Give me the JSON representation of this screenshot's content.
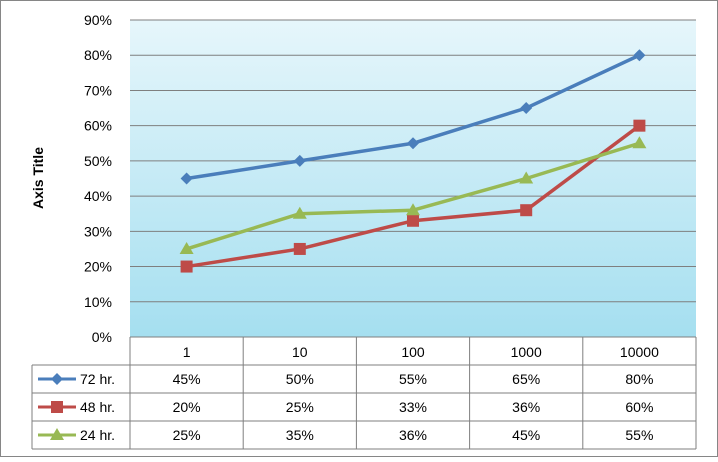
{
  "chart_data": {
    "type": "line",
    "title": "",
    "ylabel": "Axis Title",
    "xlabel": "",
    "categories": [
      "1",
      "10",
      "100",
      "1000",
      "10000"
    ],
    "ylim": [
      0,
      90
    ],
    "yticks": [
      "0%",
      "10%",
      "20%",
      "30%",
      "40%",
      "50%",
      "60%",
      "70%",
      "80%",
      "90%"
    ],
    "grid": true,
    "legend": "data-table",
    "series": [
      {
        "name": "72 hr.",
        "values": [
          45,
          50,
          55,
          65,
          80
        ],
        "labels": [
          "45%",
          "50%",
          "55%",
          "65%",
          "80%"
        ],
        "color": "#4a7ebb",
        "marker": "diamond"
      },
      {
        "name": "48 hr.",
        "values": [
          20,
          25,
          33,
          36,
          60
        ],
        "labels": [
          "20%",
          "25%",
          "33%",
          "36%",
          "60%"
        ],
        "color": "#be4b48",
        "marker": "square"
      },
      {
        "name": "24 hr.",
        "values": [
          25,
          35,
          36,
          45,
          55
        ],
        "labels": [
          "25%",
          "35%",
          "36%",
          "45%",
          "55%"
        ],
        "color": "#98b954",
        "marker": "triangle"
      }
    ],
    "colors": {
      "plot_top": "#e6f6fb",
      "plot_bottom": "#a5dff0",
      "grid": "#7f7f7f"
    }
  }
}
